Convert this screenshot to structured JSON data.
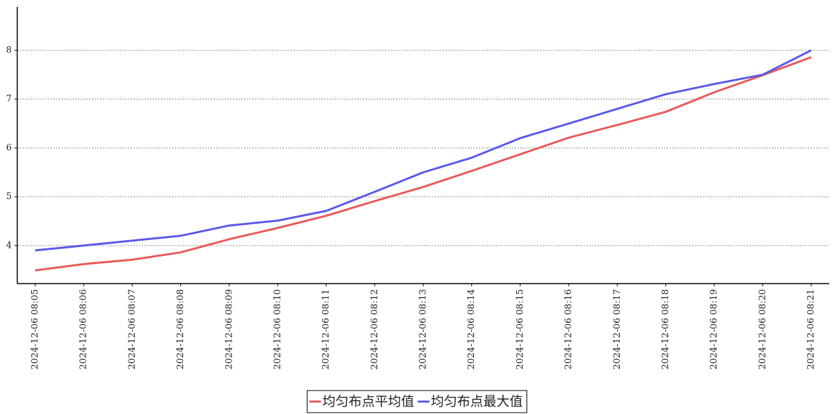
{
  "chart_data": {
    "type": "line",
    "categories": [
      "2024-12-06 08:05",
      "2024-12-06 08:06",
      "2024-12-06 08:07",
      "2024-12-06 08:08",
      "2024-12-06 08:09",
      "2024-12-06 08:10",
      "2024-12-06 08:11",
      "2024-12-06 08:12",
      "2024-12-06 08:13",
      "2024-12-06 08:14",
      "2024-12-06 08:15",
      "2024-12-06 08:16",
      "2024-12-06 08:17",
      "2024-12-06 08:18",
      "2024-12-06 08:19",
      "2024-12-06 08:20",
      "2024-12-06 08:21"
    ],
    "series": [
      {
        "name": "均匀布点平均值",
        "color": "#e85a5a",
        "values": [
          3.49,
          3.62,
          3.71,
          3.86,
          4.13,
          4.36,
          4.61,
          4.91,
          5.2,
          5.53,
          5.87,
          6.21,
          6.47,
          6.74,
          7.14,
          7.49,
          7.86
        ]
      },
      {
        "name": "均匀布点最大值",
        "color": "#5a5ae8",
        "values": [
          3.9,
          4.0,
          4.1,
          4.2,
          4.41,
          4.51,
          4.71,
          5.1,
          5.5,
          5.8,
          6.2,
          6.5,
          6.8,
          7.1,
          7.31,
          7.5,
          8.0
        ]
      }
    ],
    "ylim": [
      3.22,
      8.89
    ],
    "yticks": [
      4,
      5,
      6,
      7,
      8
    ],
    "grid": true
  }
}
